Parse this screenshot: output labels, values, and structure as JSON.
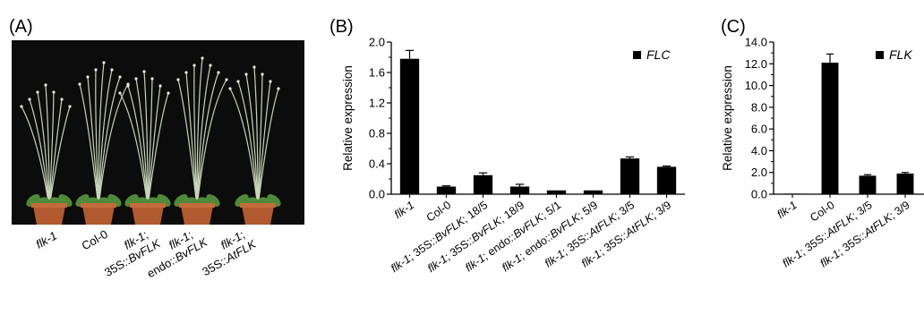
{
  "panels": {
    "A": {
      "label": "(A)",
      "genotypes": [
        {
          "line1": "flk-1",
          "line2": ""
        },
        {
          "line1": "Col-0",
          "line2": ""
        },
        {
          "line1": "flk-1;",
          "line2": "35S::BvFLK"
        },
        {
          "line1": "flk-1;",
          "line2": "endo::BvFLK"
        },
        {
          "line1": "flk-1;",
          "line2": "35S::AtFLK"
        }
      ],
      "colors": {
        "background": "#0c0c0c",
        "pot": "#b25a2f",
        "leaf": "#4f8a3a"
      }
    }
  },
  "chart_data": [
    {
      "panel_label": "(B)",
      "type": "bar",
      "legend": "FLC",
      "ylabel": "Relative expression",
      "ylim": [
        0,
        2.0
      ],
      "yticks": [
        0.0,
        0.4,
        0.8,
        1.2,
        1.6,
        2.0
      ],
      "ytick_labels": [
        "0.0",
        "0.4",
        "0.8",
        "1.2",
        "1.6",
        "2.0"
      ],
      "categories": [
        "flk-1",
        "Col-0",
        "flk-1; 35S::BvFLK; 18/5",
        "flk-1; 35S::BvFLK; 18/9",
        "flk-1; endo::BvFLK; 5/1",
        "flk-1; endo::BvFLK; 5/9",
        "flk-1; 35S::AtFLK; 3/5",
        "flk-1; 35S::AtFLK; 3/9"
      ],
      "values": [
        1.78,
        0.1,
        0.25,
        0.1,
        0.05,
        0.05,
        0.47,
        0.36
      ],
      "errors": [
        0.11,
        0.01,
        0.03,
        0.03,
        0.0,
        0.0,
        0.02,
        0.01
      ],
      "bar_color": "#000000",
      "legend_position": "top-right"
    },
    {
      "panel_label": "(C)",
      "type": "bar",
      "legend": "FLK",
      "ylabel": "Relative expression",
      "ylim": [
        0,
        14.0
      ],
      "yticks": [
        0,
        2,
        4,
        6,
        8,
        10,
        12,
        14
      ],
      "ytick_labels": [
        "0.0",
        "2.0",
        "4.0",
        "6.0",
        "8.0",
        "10.0",
        "12.0",
        "14.0"
      ],
      "categories": [
        "flk-1",
        "Col-0",
        "flk-1; 35S::AtFLK; 3/5",
        "flk-1; 35S::AtFLK; 3/9"
      ],
      "values": [
        0.05,
        12.1,
        1.7,
        1.9
      ],
      "errors": [
        0.0,
        0.8,
        0.1,
        0.1
      ],
      "bar_color": "#000000",
      "legend_position": "top-right"
    }
  ]
}
